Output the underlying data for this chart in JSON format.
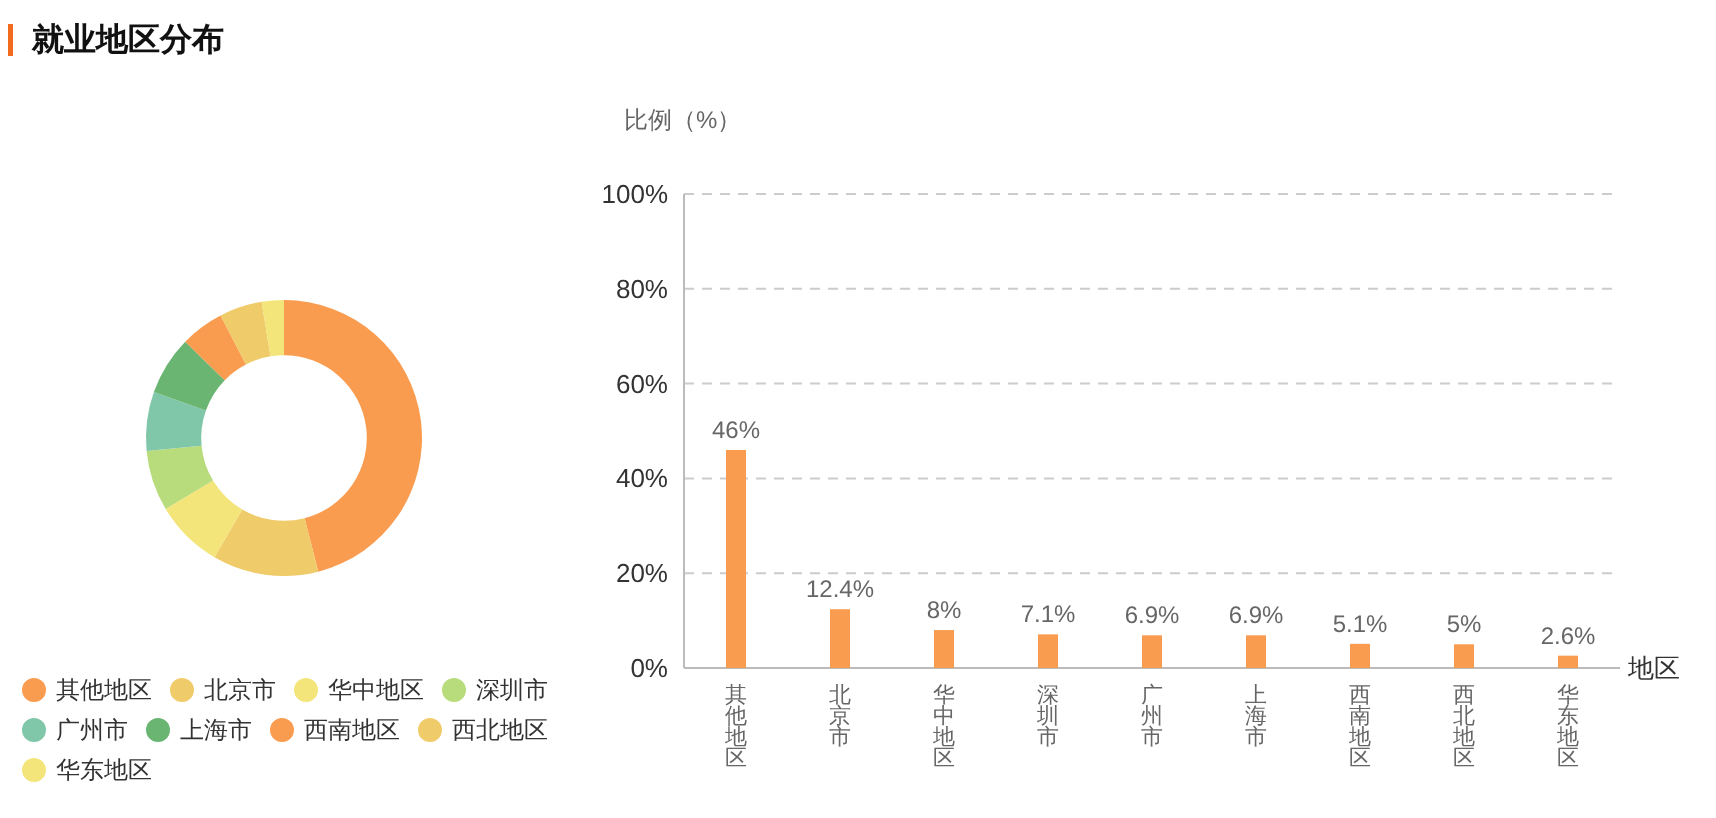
{
  "chart_data": [
    {
      "type": "donut",
      "title": "就业地区分布",
      "categories": [
        "其他地区",
        "北京市",
        "华中地区",
        "深圳市",
        "广州市",
        "上海市",
        "西南地区",
        "西北地区",
        "华东地区"
      ],
      "values": [
        46,
        12.4,
        8,
        7.1,
        6.9,
        6.9,
        5.1,
        5,
        2.6
      ],
      "colors": [
        "#f99c4f",
        "#f0cb69",
        "#f4e57a",
        "#b8dc7c",
        "#7fc7a8",
        "#6ab572",
        "#f99c4f",
        "#f0cb69",
        "#f4e57a"
      ],
      "legend": "bottom"
    },
    {
      "type": "bar",
      "ylabel": "比例（%）",
      "xlabel": "地区",
      "categories": [
        "其他地区",
        "北京市",
        "华中地区",
        "深圳市",
        "广州市",
        "上海市",
        "西南地区",
        "西北地区",
        "华东地区"
      ],
      "values": [
        46,
        12.4,
        8,
        7.1,
        6.9,
        6.9,
        5.1,
        5,
        2.6
      ],
      "color": "#fa9c4f",
      "ylim": [
        0,
        100
      ],
      "yticks": [
        {
          "value": 0,
          "label": "0%"
        },
        {
          "value": 20,
          "label": "20%"
        },
        {
          "value": 40,
          "label": "40%"
        },
        {
          "value": 60,
          "label": "60%"
        },
        {
          "value": 80,
          "label": "80%"
        },
        {
          "value": 100,
          "label": "100%"
        }
      ],
      "grid": "y",
      "value_labels": [
        "46%",
        "12.4%",
        "8%",
        "7.1%",
        "6.9%",
        "6.9%",
        "5.1%",
        "5%",
        "2.6%"
      ]
    }
  ]
}
